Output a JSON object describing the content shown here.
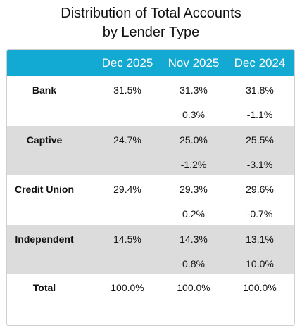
{
  "title_lines": [
    "Distribution of Total Accounts",
    "by Lender Type"
  ],
  "table": {
    "columns": [
      "Dec 2025",
      "Nov 2025",
      "Dec 2024"
    ],
    "rows": [
      {
        "label": "Bank",
        "values": [
          "31.5%",
          "31.3%",
          "31.8%"
        ],
        "changes": [
          "0.3%",
          "-1.1%"
        ]
      },
      {
        "label": "Captive",
        "values": [
          "24.7%",
          "25.0%",
          "25.5%"
        ],
        "changes": [
          "-1.2%",
          "-3.1%"
        ]
      },
      {
        "label": "Credit Union",
        "values": [
          "29.4%",
          "29.3%",
          "29.6%"
        ],
        "changes": [
          "0.2%",
          "-0.7%"
        ]
      },
      {
        "label": "Independent",
        "values": [
          "14.5%",
          "14.3%",
          "13.1%"
        ],
        "changes": [
          "0.8%",
          "10.0%"
        ]
      }
    ],
    "total": {
      "label": "Total",
      "values": [
        "100.0%",
        "100.0%",
        "100.0%"
      ]
    }
  }
}
